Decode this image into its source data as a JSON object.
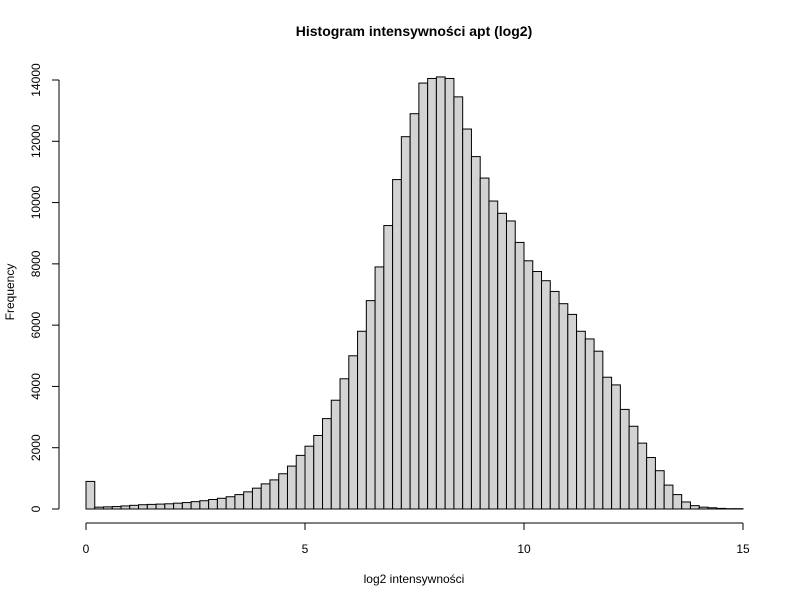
{
  "chart_data": {
    "type": "bar",
    "title": "Histogram intensywności apt (log2)",
    "xlabel": "log2 intensywności",
    "ylabel": "Frequency",
    "bin_width": 0.2,
    "bin_start": 0,
    "xlim": [
      0,
      15
    ],
    "ylim": [
      0,
      14000
    ],
    "x_ticks": [
      0,
      5,
      10,
      15
    ],
    "y_ticks": [
      0,
      2000,
      4000,
      6000,
      8000,
      10000,
      12000,
      14000
    ],
    "values": [
      900,
      60,
      70,
      80,
      100,
      120,
      140,
      150,
      160,
      170,
      190,
      210,
      240,
      270,
      310,
      350,
      400,
      470,
      560,
      680,
      820,
      950,
      1150,
      1400,
      1750,
      2050,
      2400,
      2950,
      3550,
      4250,
      5000,
      5800,
      6800,
      7900,
      9250,
      10750,
      12150,
      12900,
      13900,
      14050,
      14100,
      14050,
      13450,
      12400,
      11500,
      10800,
      10050,
      9650,
      9400,
      8700,
      8100,
      7750,
      7450,
      7100,
      6700,
      6350,
      5800,
      5550,
      5150,
      4300,
      4050,
      3250,
      2700,
      2150,
      1680,
      1250,
      780,
      470,
      230,
      110,
      60,
      40,
      20,
      10,
      10
    ]
  }
}
